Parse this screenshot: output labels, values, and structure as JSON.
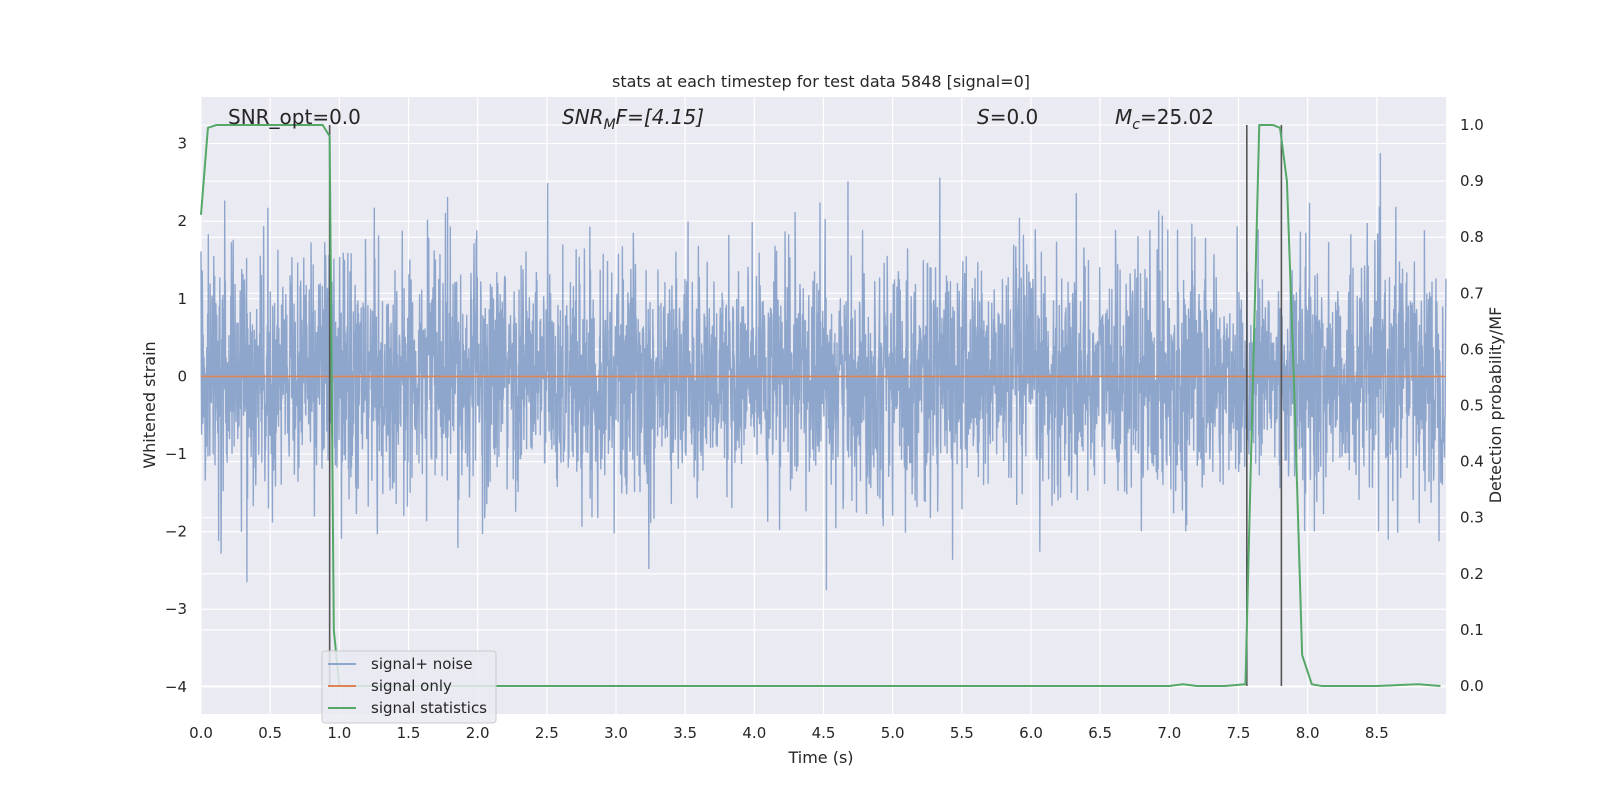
{
  "chart_data": {
    "type": "line",
    "title": "stats at each timestep for test data 5848 [signal=0]",
    "xlabel": "Time (s)",
    "ylabel": "Whitened strain",
    "y2label": "Detection probability/MF",
    "xlim": [
      0.0,
      9.0
    ],
    "ylim": [
      -4.35,
      3.6
    ],
    "y2lim": [
      -0.05,
      1.05
    ],
    "xticks": [
      0.0,
      0.5,
      1.0,
      1.5,
      2.0,
      2.5,
      3.0,
      3.5,
      4.0,
      4.5,
      5.0,
      5.5,
      6.0,
      6.5,
      7.0,
      7.5,
      8.0,
      8.5
    ],
    "xtick_labels": [
      "0.0",
      "0.5",
      "1.0",
      "1.5",
      "2.0",
      "2.5",
      "3.0",
      "3.5",
      "4.0",
      "4.5",
      "5.0",
      "5.5",
      "6.0",
      "6.5",
      "7.0",
      "7.5",
      "8.0",
      "8.5"
    ],
    "yticks": [
      3,
      2,
      1,
      0,
      -1,
      -2,
      -3,
      -4
    ],
    "ytick_labels": [
      "3",
      "2",
      "1",
      "0",
      "−1",
      "−2",
      "−3",
      "−4"
    ],
    "y2ticks": [
      1.0,
      0.9,
      0.8,
      0.7,
      0.6,
      0.5,
      0.4,
      0.3,
      0.2,
      0.1,
      0.0
    ],
    "y2tick_labels": [
      "1.0",
      "0.9",
      "0.8",
      "0.7",
      "0.6",
      "0.5",
      "0.4",
      "0.3",
      "0.2",
      "0.1",
      "0.0"
    ],
    "annotations": {
      "snr_opt": "SNR_opt=0.0",
      "snr_mf_base": "SNR",
      "snr_mf_sub": "M",
      "snr_mf_tail": "F=[4.15]",
      "s_var": "S",
      "s_tail": "=0.0",
      "mc_base": "M",
      "mc_sub": "c",
      "mc_tail": "=25.02"
    },
    "legend": {
      "position": "lower-left",
      "entries": [
        "signal+ noise",
        "signal only",
        "signal statistics"
      ]
    },
    "series": [
      {
        "name": "signal+ noise",
        "color": "#8fa6cc",
        "noise": {
          "duration_s": 9.0,
          "std": 0.75,
          "samples": 4096
        }
      },
      {
        "name": "signal only",
        "color": "#dd8452",
        "x": [
          0.0,
          9.0
        ],
        "y": [
          0.0,
          0.0
        ]
      },
      {
        "name": "signal statistics",
        "color": "#55a868",
        "axis": "right",
        "x": [
          0.0,
          0.05,
          0.11,
          0.2,
          0.4,
          0.6,
          0.8,
          0.88,
          0.93,
          0.96,
          1.0,
          1.2,
          2.0,
          3.0,
          4.0,
          5.0,
          6.0,
          6.5,
          7.0,
          7.1,
          7.2,
          7.4,
          7.55,
          7.65,
          7.75,
          7.8,
          7.85,
          7.9,
          7.96,
          8.03,
          8.1,
          8.5,
          8.8,
          8.96
        ],
        "y": [
          0.84,
          0.995,
          1.0,
          1.0,
          1.0,
          1.0,
          1.0,
          1.0,
          0.98,
          0.1,
          0.0,
          0.0,
          0.0,
          0.0,
          0.0,
          0.0,
          0.0,
          0.0,
          0.0,
          0.003,
          0.0,
          0.0,
          0.003,
          1.0,
          1.0,
          0.995,
          0.9,
          0.55,
          0.055,
          0.003,
          0.0,
          0.0,
          0.003,
          0.0
        ]
      }
    ],
    "vlines": [
      0.93,
      7.56,
      7.81
    ]
  },
  "colors": {
    "plot_bg": "#eaeaf2",
    "grid": "#ffffff",
    "vline": "#555555"
  }
}
